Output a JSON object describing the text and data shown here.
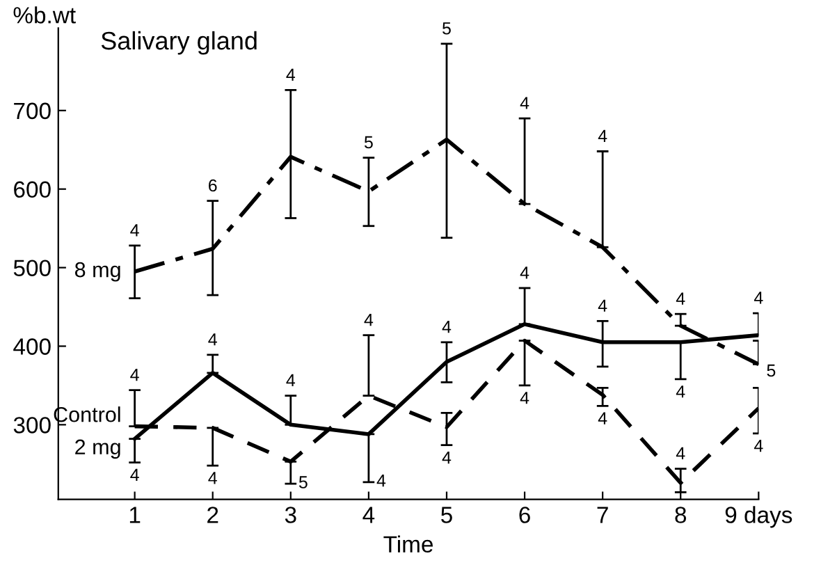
{
  "chart_data": {
    "type": "line",
    "title": "Salivary gland",
    "ylabel": "%b.wt",
    "xlabel": "Time",
    "x": [
      1,
      2,
      3,
      4,
      5,
      6,
      7,
      8,
      9
    ],
    "xlim": [
      0.02,
      9
    ],
    "xticks": [
      1,
      2,
      3,
      4,
      5,
      6,
      7,
      8,
      {
        "value": 9,
        "label": "9 days"
      }
    ],
    "ylim": [
      205,
      805
    ],
    "yticks": [
      300,
      400,
      500,
      600,
      700
    ],
    "grid": false,
    "legend": false,
    "marker": "none",
    "series": [
      {
        "name": "8 mg",
        "color": "#000000",
        "line_style": "dashdot",
        "values": [
          495,
          524,
          641,
          597,
          663,
          581,
          526,
          426,
          377
        ],
        "errors": [
          [
            461,
            528
          ],
          [
            465,
            585
          ],
          [
            563,
            726
          ],
          [
            553,
            640
          ],
          [
            538,
            785
          ],
          [
            581,
            690
          ],
          [
            526,
            648
          ],
          [
            426,
            441
          ],
          [
            377,
            407
          ]
        ]
      },
      {
        "name": "Control",
        "color": "#000000",
        "line_style": "dashed",
        "values": [
          298,
          296,
          253,
          337,
          297,
          407,
          338,
          226,
          321
        ],
        "errors": [
          [
            298,
            344
          ],
          [
            248,
            296
          ],
          [
            225,
            253
          ],
          [
            337,
            414
          ],
          [
            274,
            315
          ],
          [
            350,
            407
          ],
          [
            324,
            347
          ],
          [
            214,
            244
          ],
          [
            289,
            347
          ]
        ]
      },
      {
        "name": "2 mg",
        "color": "#000000",
        "line_style": "solid",
        "values": [
          282,
          366,
          300,
          288,
          380,
          428,
          405,
          405,
          414
        ],
        "errors": [
          [
            252,
            282
          ],
          [
            366,
            389
          ],
          [
            300,
            337
          ],
          [
            227,
            288
          ],
          [
            354,
            405
          ],
          [
            428,
            474
          ],
          [
            374,
            432
          ],
          [
            358,
            405
          ],
          [
            414,
            442
          ]
        ]
      }
    ],
    "annotations": [
      {
        "text": "4",
        "x": 1,
        "y": 528
      },
      {
        "text": "6",
        "x": 2,
        "y": 585
      },
      {
        "text": "4",
        "x": 3,
        "y": 726
      },
      {
        "text": "5",
        "x": 4,
        "y": 640
      },
      {
        "text": "5",
        "x": 5,
        "y": 785
      },
      {
        "text": "4",
        "x": 6,
        "y": 690
      },
      {
        "text": "4",
        "x": 7,
        "y": 648
      },
      {
        "text": "4",
        "x": 8,
        "y": 441
      },
      {
        "text": "5",
        "x": 9,
        "y": 377
      },
      {
        "text": "4",
        "x": 1,
        "y": 344
      },
      {
        "text": "4",
        "x": 2,
        "y": 248
      },
      {
        "text": "5",
        "x": 3,
        "y": 225
      },
      {
        "text": "4",
        "x": 4,
        "y": 414
      },
      {
        "text": "4",
        "x": 5,
        "y": 274
      },
      {
        "text": "4",
        "x": 6,
        "y": 350
      },
      {
        "text": "4",
        "x": 7,
        "y": 324
      },
      {
        "text": "4",
        "x": 8,
        "y": 244
      },
      {
        "text": "4",
        "x": 9,
        "y": 289
      },
      {
        "text": "4",
        "x": 1,
        "y": 252
      },
      {
        "text": "4",
        "x": 2,
        "y": 389
      },
      {
        "text": "4",
        "x": 3,
        "y": 337
      },
      {
        "text": "4",
        "x": 4,
        "y": 227
      },
      {
        "text": "4",
        "x": 5,
        "y": 405
      },
      {
        "text": "4",
        "x": 6,
        "y": 474
      },
      {
        "text": "4",
        "x": 7,
        "y": 432
      },
      {
        "text": "4",
        "x": 8,
        "y": 358
      },
      {
        "text": "4",
        "x": 9,
        "y": 442
      }
    ]
  }
}
